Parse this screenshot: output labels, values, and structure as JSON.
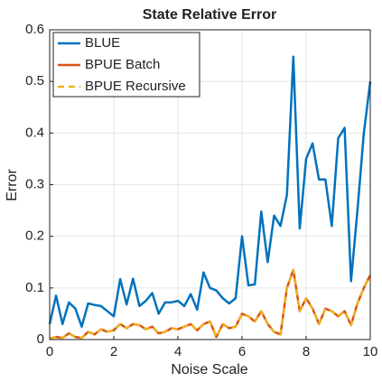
{
  "chart_data": {
    "type": "line",
    "title": "State Relative Error",
    "xlabel": "Noise Scale",
    "ylabel": "Error",
    "x": [
      0,
      0.2,
      0.4,
      0.6,
      0.8,
      1,
      1.2,
      1.4,
      1.6,
      1.8,
      2,
      2.2,
      2.4,
      2.6,
      2.8,
      3,
      3.2,
      3.4,
      3.6,
      3.8,
      4,
      4.2,
      4.4,
      4.6,
      4.8,
      5,
      5.2,
      5.4,
      5.6,
      5.8,
      6,
      6.2,
      6.4,
      6.6,
      6.8,
      7,
      7.2,
      7.4,
      7.6,
      7.8,
      8,
      8.2,
      8.4,
      8.6,
      8.8,
      9,
      9.2,
      9.4,
      9.6,
      9.8,
      10
    ],
    "series": [
      {
        "name": "BLUE",
        "color": "#0072bd",
        "dash": false,
        "values": [
          0.03,
          0.085,
          0.03,
          0.072,
          0.06,
          0.025,
          0.07,
          0.067,
          0.065,
          0.055,
          0.045,
          0.117,
          0.068,
          0.118,
          0.065,
          0.075,
          0.09,
          0.05,
          0.072,
          0.072,
          0.075,
          0.065,
          0.088,
          0.058,
          0.13,
          0.1,
          0.095,
          0.08,
          0.07,
          0.08,
          0.2,
          0.105,
          0.107,
          0.248,
          0.15,
          0.24,
          0.22,
          0.28,
          0.548,
          0.215,
          0.35,
          0.38,
          0.31,
          0.31,
          0.22,
          0.39,
          0.41,
          0.113,
          0.25,
          0.4,
          0.5
        ]
      },
      {
        "name": "BPUE Batch",
        "color": "#d95319",
        "dash": false,
        "values": [
          0.002,
          0.005,
          0.003,
          0.012,
          0.005,
          0.003,
          0.015,
          0.01,
          0.02,
          0.015,
          0.018,
          0.03,
          0.022,
          0.03,
          0.028,
          0.02,
          0.025,
          0.012,
          0.015,
          0.022,
          0.02,
          0.025,
          0.03,
          0.018,
          0.03,
          0.035,
          0.005,
          0.03,
          0.022,
          0.025,
          0.05,
          0.045,
          0.035,
          0.055,
          0.03,
          0.015,
          0.01,
          0.1,
          0.135,
          0.055,
          0.08,
          0.06,
          0.03,
          0.06,
          0.055,
          0.045,
          0.055,
          0.028,
          0.07,
          0.1,
          0.125
        ]
      },
      {
        "name": "BPUE Recursive",
        "color": "#edb120",
        "dash": true,
        "values": [
          0.002,
          0.005,
          0.003,
          0.012,
          0.005,
          0.003,
          0.015,
          0.01,
          0.02,
          0.015,
          0.018,
          0.03,
          0.022,
          0.03,
          0.028,
          0.02,
          0.025,
          0.012,
          0.015,
          0.022,
          0.02,
          0.025,
          0.03,
          0.018,
          0.03,
          0.035,
          0.005,
          0.03,
          0.022,
          0.025,
          0.05,
          0.045,
          0.035,
          0.055,
          0.03,
          0.015,
          0.01,
          0.1,
          0.135,
          0.055,
          0.08,
          0.06,
          0.03,
          0.06,
          0.055,
          0.045,
          0.055,
          0.028,
          0.07,
          0.1,
          0.125
        ]
      }
    ],
    "xlim": [
      0,
      10
    ],
    "xticks": [
      0,
      2,
      4,
      6,
      8,
      10
    ],
    "ylim": [
      0,
      0.6
    ],
    "yticks": [
      0,
      0.1,
      0.2,
      0.3,
      0.4,
      0.5,
      0.6
    ],
    "grid": true,
    "legend": "top-left"
  }
}
